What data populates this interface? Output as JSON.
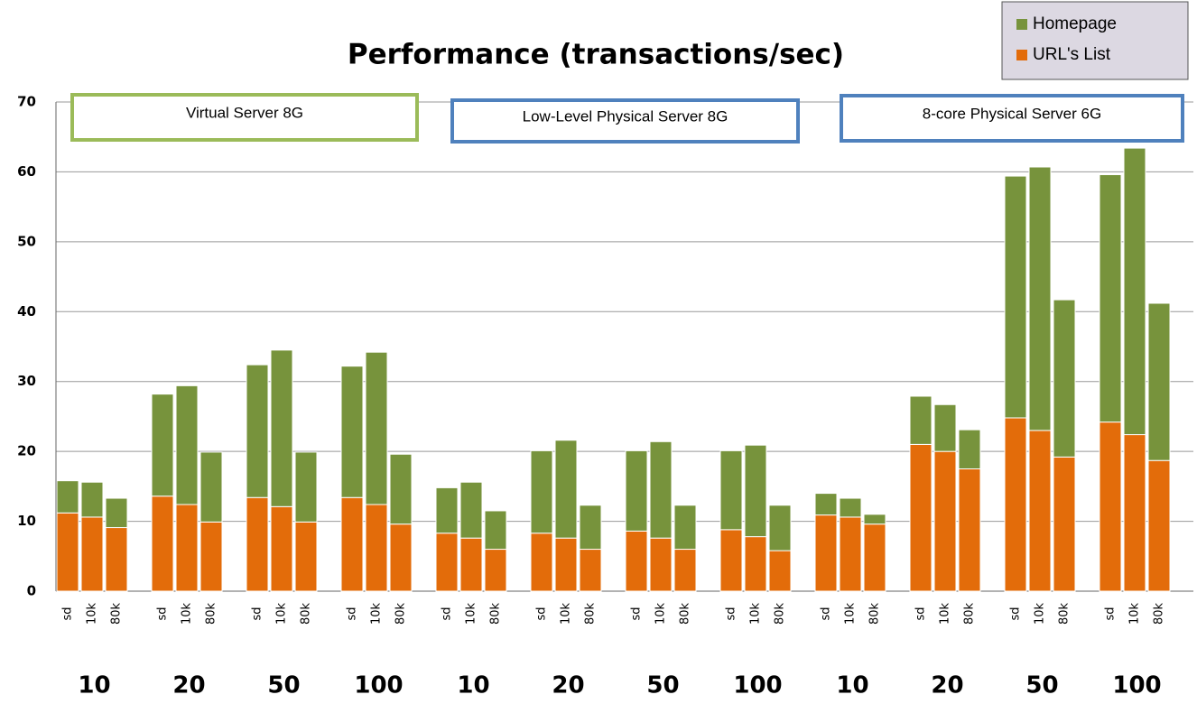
{
  "chart_data": {
    "type": "stacked_bar",
    "title": "Performance (transactions/sec)",
    "categories": [
      "sd",
      "10k",
      "80k",
      "sd",
      "10k",
      "80k",
      "sd",
      "10k",
      "80k",
      "sd",
      "10k",
      "80k",
      "sd",
      "10k",
      "80k",
      "sd",
      "10k",
      "80k",
      "sd",
      "10k",
      "80k",
      "sd",
      "10k",
      "80k",
      "sd",
      "10k",
      "80k",
      "sd",
      "10k",
      "80k",
      "sd",
      "10k",
      "80k",
      "sd",
      "10k",
      "80k"
    ],
    "groups": [
      "10",
      "20",
      "50",
      "100",
      "10",
      "20",
      "50",
      "100",
      "10",
      "20",
      "50",
      "100"
    ],
    "series": [
      {
        "name": "URL's List",
        "color": "#e36c0a",
        "values": [
          11.2,
          10.6,
          9.1,
          13.6,
          12.4,
          9.9,
          13.4,
          12.1,
          9.9,
          13.4,
          12.4,
          9.6,
          8.3,
          7.6,
          6.0,
          8.3,
          7.6,
          6.0,
          8.6,
          7.6,
          6.0,
          8.8,
          7.8,
          5.8,
          10.9,
          10.6,
          9.6,
          21.0,
          20.0,
          17.5,
          24.8,
          23.0,
          19.2,
          24.2,
          22.4,
          18.7
        ]
      },
      {
        "name": "Homepage",
        "color": "#77933c",
        "values": [
          4.6,
          5.0,
          4.2,
          14.6,
          17.0,
          10.0,
          19.0,
          22.4,
          10.0,
          18.8,
          21.8,
          10.0,
          6.5,
          8.0,
          5.5,
          11.8,
          14.0,
          6.3,
          11.5,
          13.8,
          6.3,
          11.3,
          13.1,
          6.5,
          3.1,
          2.7,
          1.4,
          6.9,
          6.7,
          5.6,
          34.6,
          37.7,
          22.5,
          35.4,
          41.0,
          22.5
        ]
      }
    ],
    "annotations": [
      {
        "text": "Virtual Server 8G",
        "color": "#9bbb59"
      },
      {
        "text": "Low-Level Physical Server 8G",
        "color": "#4f81bd"
      },
      {
        "text": "8-core Physical Server 6G",
        "color": "#4f81bd"
      }
    ],
    "ylim": [
      0,
      70
    ],
    "yticks": [
      0,
      10,
      20,
      30,
      40,
      50,
      60,
      70
    ],
    "grid": true,
    "legend": "top-right"
  }
}
